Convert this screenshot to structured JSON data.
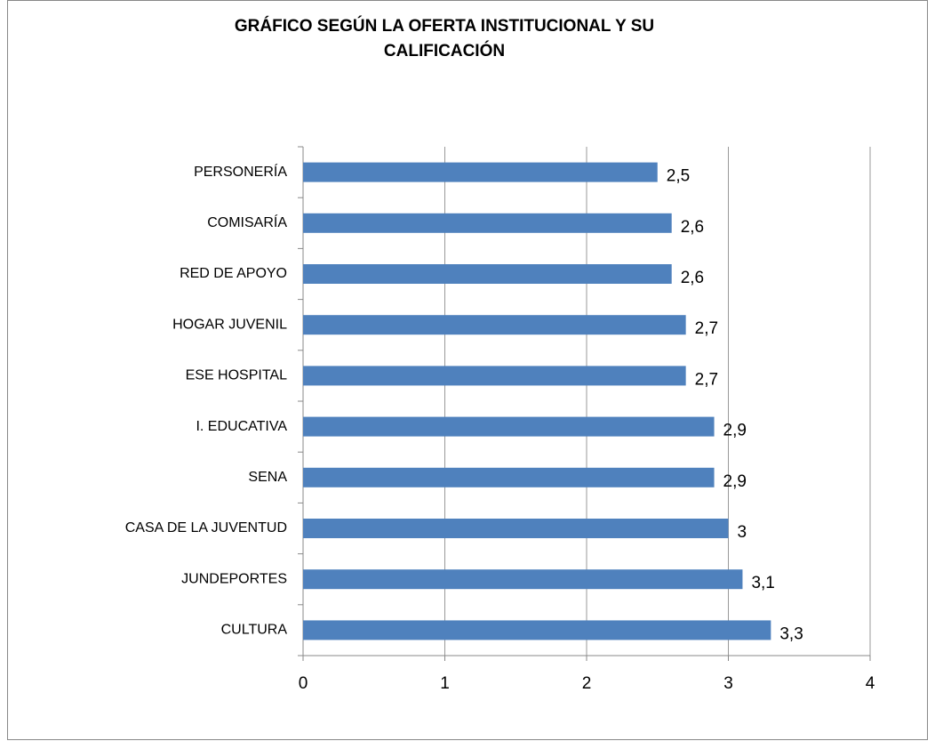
{
  "chart_data": {
    "type": "hbar",
    "title": [
      "GRÁFICO SEGÚN LA OFERTA INSTITUCIONAL Y SU",
      "CALIFICACIÓN"
    ],
    "categories": [
      "PERSONERÍA",
      "COMISARÍA",
      "RED DE APOYO",
      "HOGAR JUVENIL",
      "ESE HOSPITAL",
      "I. EDUCATIVA",
      "SENA",
      "CASA DE LA JUVENTUD",
      "JUNDEPORTES",
      "CULTURA"
    ],
    "values": [
      2.5,
      2.6,
      2.6,
      2.7,
      2.7,
      2.9,
      2.9,
      3,
      3.1,
      3.3
    ],
    "value_labels": [
      "2,5",
      "2,6",
      "2,6",
      "2,7",
      "2,7",
      "2,9",
      "2,9",
      "3",
      "3,1",
      "3,3"
    ],
    "color": "#4f81bd",
    "xlim": [
      0,
      4
    ],
    "xticks": [
      0,
      1,
      2,
      3,
      4
    ],
    "grid": true
  }
}
